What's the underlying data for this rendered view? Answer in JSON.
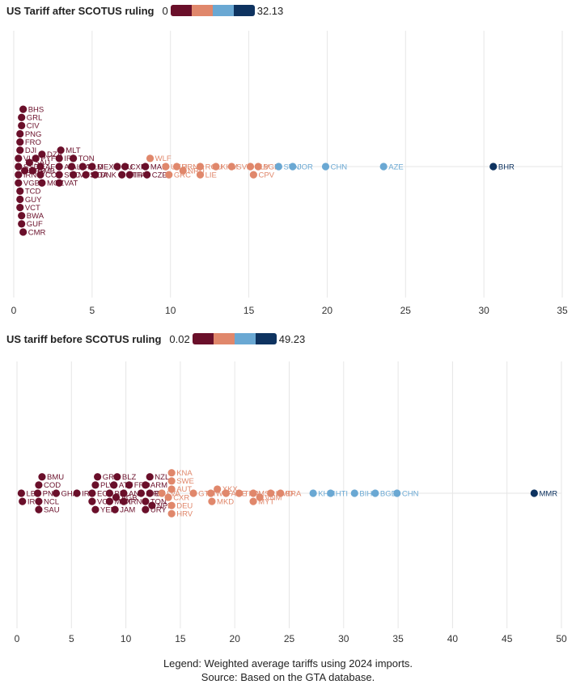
{
  "colors": {
    "c1": "#6a0f2a",
    "c2": "#e0876b",
    "c3": "#6aa8d3",
    "c4": "#0e3360",
    "grid": "#e6e6e6"
  },
  "chart_data": [
    {
      "type": "scatter",
      "subtype": "beeswarm",
      "title": "US Tariff after SCOTUS ruling",
      "legend_min": "0",
      "legend_max": "32.13",
      "xlim": [
        0,
        35
      ],
      "xticks": [
        "0",
        "5",
        "10",
        "15",
        "20",
        "25",
        "30",
        "35"
      ],
      "labels": [
        {
          "name": "SSD",
          "value": 0.3
        },
        {
          "name": "IRN",
          "value": 0.3
        },
        {
          "name": "VUT",
          "value": 0.3
        },
        {
          "name": "DJI",
          "value": 0.4
        },
        {
          "name": "VGB",
          "value": 0.3
        },
        {
          "name": "TCD",
          "value": 0.4
        },
        {
          "name": "GMB",
          "value": 1.2
        },
        {
          "name": "FRO",
          "value": 0.4
        },
        {
          "name": "AIA",
          "value": 2.9
        },
        {
          "name": "CIV",
          "value": 0.5
        },
        {
          "name": "PYF",
          "value": 1.4
        },
        {
          "name": "SYC",
          "value": 2.9
        },
        {
          "name": "MDA",
          "value": 4.6
        },
        {
          "name": "GUY",
          "value": 0.4
        },
        {
          "name": "DZA",
          "value": 1.8
        },
        {
          "name": "MLT",
          "value": 3.0
        },
        {
          "name": "NLD",
          "value": 4.4
        },
        {
          "name": "ETH",
          "value": 6.9
        },
        {
          "name": "CZE",
          "value": 8.5
        },
        {
          "name": "UKR",
          "value": 9.7
        },
        {
          "name": "NRU",
          "value": 10.8
        },
        {
          "name": "SLV",
          "value": 15.1
        },
        {
          "name": "SAU",
          "value": 1.0
        },
        {
          "name": "IRL",
          "value": 2.9
        },
        {
          "name": "MYS",
          "value": 3.8
        },
        {
          "name": "MEX",
          "value": 5.0
        },
        {
          "name": "EU",
          "value": 6.6
        },
        {
          "name": "ITA",
          "value": 7.4
        },
        {
          "name": "WLF",
          "value": 8.7
        },
        {
          "name": "URN",
          "value": 10.4
        },
        {
          "name": "ROU",
          "value": 11.9
        },
        {
          "name": "KHM",
          "value": 12.9
        },
        {
          "name": "SVK",
          "value": 13.9
        },
        {
          "name": "BGD",
          "value": 15.6
        },
        {
          "name": "SVN",
          "value": 16.9
        },
        {
          "name": "JOR",
          "value": 17.8
        },
        {
          "name": "CHN",
          "value": 19.9
        },
        {
          "name": "AZE",
          "value": 23.6
        },
        {
          "name": "BHR",
          "value": 30.6
        },
        {
          "name": "LVA",
          "value": 3.7
        },
        {
          "name": "DNK",
          "value": 5.2
        },
        {
          "name": "CXR",
          "value": 7.1
        },
        {
          "name": "MAR",
          "value": 8.4
        },
        {
          "name": "GRC",
          "value": 9.9
        },
        {
          "name": "LIE",
          "value": 11.9
        },
        {
          "name": "CPV",
          "value": 15.3
        },
        {
          "name": "BHS",
          "value": 0.6
        },
        {
          "name": "MOZ",
          "value": 1.8
        },
        {
          "name": "TON",
          "value": 3.8
        },
        {
          "name": "BWA",
          "value": 0.5
        },
        {
          "name": "AFG",
          "value": 1.7
        },
        {
          "name": "CMR",
          "value": 0.6
        },
        {
          "name": "VAT",
          "value": 2.9
        },
        {
          "name": "COK",
          "value": 1.7
        },
        {
          "name": "PNG",
          "value": 0.4
        },
        {
          "name": "BRB",
          "value": 0.7
        },
        {
          "name": "GRL",
          "value": 0.5
        },
        {
          "name": "VCT",
          "value": 0.4
        },
        {
          "name": "GUF",
          "value": 0.5
        }
      ]
    },
    {
      "type": "scatter",
      "subtype": "beeswarm",
      "title": "US tariff before SCOTUS ruling",
      "legend_min": "0.02",
      "legend_max": "49.23",
      "xlim": [
        0,
        50
      ],
      "xticks": [
        "0",
        "5",
        "10",
        "15",
        "20",
        "25",
        "30",
        "35",
        "40",
        "45",
        "50"
      ],
      "labels": [
        {
          "name": "NCL",
          "value": 2.0
        },
        {
          "name": "COD",
          "value": 2.0
        },
        {
          "name": "IRQ",
          "value": 0.5
        },
        {
          "name": "SAU",
          "value": 2.0
        },
        {
          "name": "GHA",
          "value": 3.6
        },
        {
          "name": "LBY",
          "value": 0.4
        },
        {
          "name": "PNG",
          "value": 1.9
        },
        {
          "name": "BMU",
          "value": 2.3
        },
        {
          "name": "PLW",
          "value": 7.2
        },
        {
          "name": "GRD",
          "value": 7.4
        },
        {
          "name": "ECU",
          "value": 6.9
        },
        {
          "name": "IRL",
          "value": 5.5
        },
        {
          "name": "VCT",
          "value": 6.9
        },
        {
          "name": "BEL",
          "value": 8.5
        },
        {
          "name": "YEM",
          "value": 7.2
        },
        {
          "name": "VGB",
          "value": 9.1
        },
        {
          "name": "AND",
          "value": 9.8
        },
        {
          "name": "ATF",
          "value": 8.9
        },
        {
          "name": "IRN",
          "value": 9.8
        },
        {
          "name": "TON",
          "value": 11.8
        },
        {
          "name": "BLZ",
          "value": 9.2
        },
        {
          "name": "JAM",
          "value": 9.0
        },
        {
          "name": "ARM",
          "value": 11.8
        },
        {
          "name": "LVA",
          "value": 13.3
        },
        {
          "name": "URY",
          "value": 11.8
        },
        {
          "name": "MEX",
          "value": 8.5
        },
        {
          "name": "EU",
          "value": 12.2
        },
        {
          "name": "FRO",
          "value": 10.3
        },
        {
          "name": "NZL",
          "value": 12.2
        },
        {
          "name": "NPL",
          "value": 12.4
        },
        {
          "name": "KIR",
          "value": 11.4
        },
        {
          "name": "CXR",
          "value": 13.9
        },
        {
          "name": "AUT",
          "value": 14.2
        },
        {
          "name": "DEU",
          "value": 14.2
        },
        {
          "name": "SWE",
          "value": 14.2
        },
        {
          "name": "HRV",
          "value": 14.2
        },
        {
          "name": "KNA",
          "value": 14.2
        },
        {
          "name": "MKD",
          "value": 17.9
        },
        {
          "name": "WLF",
          "value": 17.8
        },
        {
          "name": "ARE",
          "value": 19.2
        },
        {
          "name": "GTM",
          "value": 16.2
        },
        {
          "name": "XKX",
          "value": 18.4
        },
        {
          "name": "THA",
          "value": 20.4
        },
        {
          "name": "MSR",
          "value": 21.7
        },
        {
          "name": "HMD",
          "value": 23.3
        },
        {
          "name": "VNM",
          "value": 22.3
        },
        {
          "name": "MYT",
          "value": 21.7
        },
        {
          "name": "BRA",
          "value": 24.2
        },
        {
          "name": "KHM",
          "value": 27.2
        },
        {
          "name": "HTI",
          "value": 28.8
        },
        {
          "name": "BIH",
          "value": 31.0
        },
        {
          "name": "BGD",
          "value": 32.9
        },
        {
          "name": "CHN",
          "value": 34.9
        },
        {
          "name": "MMR",
          "value": 47.5
        }
      ]
    }
  ],
  "footer": {
    "line1": "Legend: Weighted average tariffs using 2024 imports.",
    "line2": "Source: Based on the GTA database."
  }
}
